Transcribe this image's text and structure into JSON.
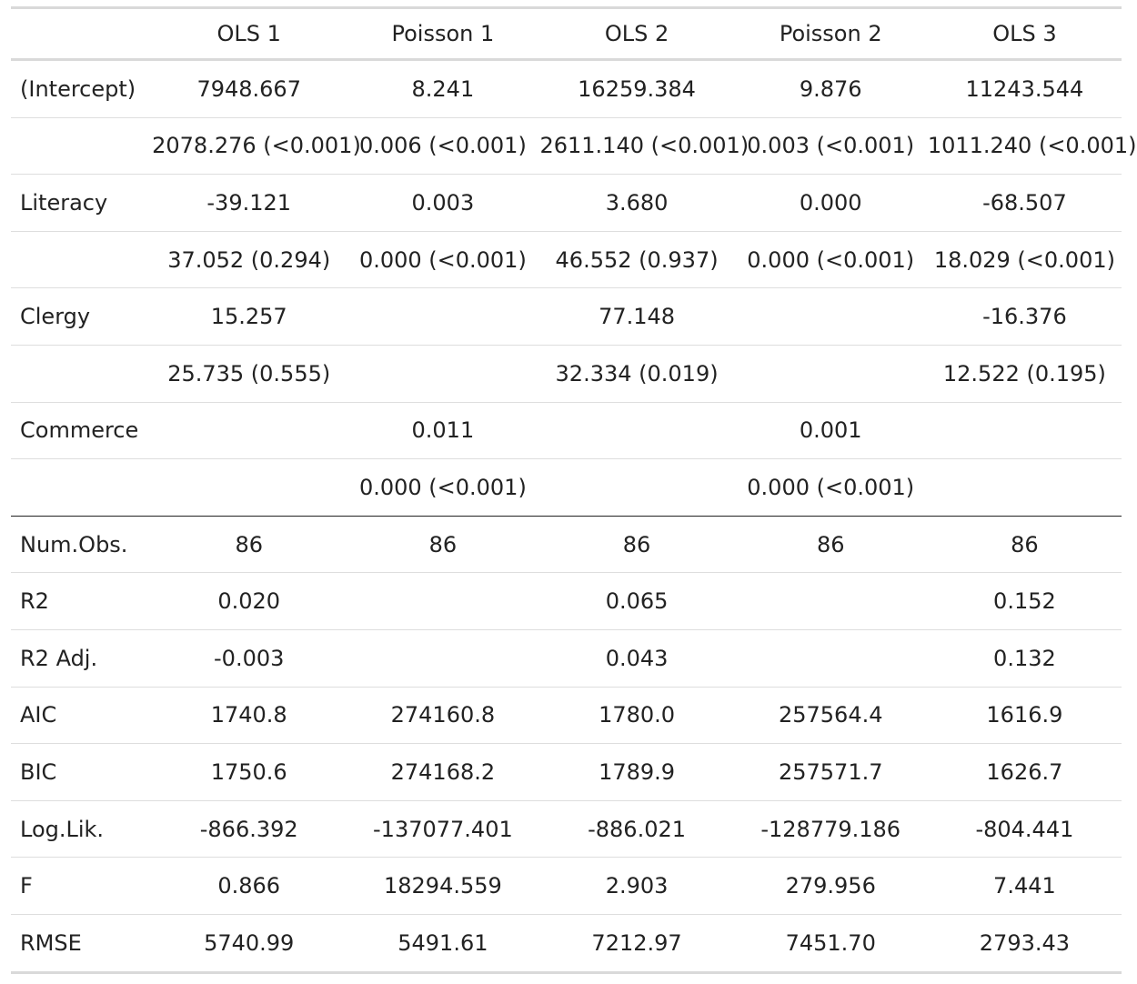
{
  "table": {
    "columns": [
      "",
      "OLS 1",
      "Poisson 1",
      "OLS 2",
      "Poisson 2",
      "OLS 3"
    ],
    "rows": [
      [
        "(Intercept)",
        "7948.667",
        "8.241",
        "16259.384",
        "9.876",
        "11243.544"
      ],
      [
        "",
        "2078.276 (<0.001)",
        "0.006 (<0.001)",
        "2611.140 (<0.001)",
        "0.003 (<0.001)",
        "1011.240 (<0.001)"
      ],
      [
        "Literacy",
        "-39.121",
        "0.003",
        "3.680",
        "0.000",
        "-68.507"
      ],
      [
        "",
        "37.052 (0.294)",
        "0.000 (<0.001)",
        "46.552 (0.937)",
        "0.000 (<0.001)",
        "18.029 (<0.001)"
      ],
      [
        "Clergy",
        "15.257",
        "",
        "77.148",
        "",
        "-16.376"
      ],
      [
        "",
        "25.735 (0.555)",
        "",
        "32.334 (0.019)",
        "",
        "12.522 (0.195)"
      ],
      [
        "Commerce",
        "",
        "0.011",
        "",
        "0.001",
        ""
      ],
      [
        "",
        "",
        "0.000 (<0.001)",
        "",
        "0.000 (<0.001)",
        ""
      ],
      [
        "Num.Obs.",
        "86",
        "86",
        "86",
        "86",
        "86"
      ],
      [
        "R2",
        "0.020",
        "",
        "0.065",
        "",
        "0.152"
      ],
      [
        "R2 Adj.",
        "-0.003",
        "",
        "0.043",
        "",
        "0.132"
      ],
      [
        "AIC",
        "1740.8",
        "274160.8",
        "1780.0",
        "257564.4",
        "1616.9"
      ],
      [
        "BIC",
        "1750.6",
        "274168.2",
        "1789.9",
        "257571.7",
        "1626.7"
      ],
      [
        "Log.Lik.",
        "-866.392",
        "-137077.401",
        "-886.021",
        "-128779.186",
        "-804.441"
      ],
      [
        "F",
        "0.866",
        "18294.559",
        "2.903",
        "279.956",
        "7.441"
      ],
      [
        "RMSE",
        "5740.99",
        "5491.61",
        "7212.97",
        "7451.70",
        "2793.43"
      ]
    ]
  }
}
